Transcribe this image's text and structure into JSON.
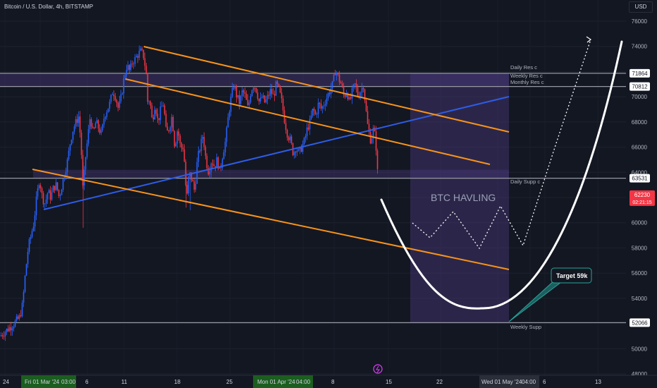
{
  "header": {
    "symbol": "Bitcoin / U.S. Dollar, 4h, BITSTAMP",
    "currency": "USD"
  },
  "colors": {
    "background": "#131722",
    "up_candle": "#2962ff",
    "down_candle": "#f23645",
    "channel": "#f7931a",
    "trendline": "#2e5ce6",
    "zone": "#4a3a7a",
    "level_line": "#9598a1",
    "projection": "#ffffff"
  },
  "chart_data": {
    "type": "candlestick",
    "y_ticks": [
      48000,
      50000,
      52000,
      54000,
      56000,
      58000,
      60000,
      62000,
      64000,
      66000,
      68000,
      70000,
      72000,
      74000,
      76000
    ],
    "y_tick_labels": [
      "48000",
      "50000",
      "52000",
      "54000",
      "56000",
      "58000",
      "60000",
      "62000",
      "64000",
      "66000",
      "68000",
      "70000",
      "72000",
      "74000",
      "76000"
    ],
    "x_tick_labels": [
      "24",
      "Fri 01 Mar '24",
      "03:00",
      "6",
      "11",
      "18",
      "25",
      "Mon 01 Apr '24",
      "04:00",
      "8",
      "15",
      "22",
      "Wed 01 May '24",
      "04:00",
      "6",
      "13"
    ],
    "price_path": [
      [
        0,
        51000
      ],
      [
        10,
        51500
      ],
      [
        20,
        52000
      ],
      [
        28,
        52500
      ],
      [
        32,
        53500
      ],
      [
        36,
        56000
      ],
      [
        40,
        58000
      ],
      [
        44,
        59000
      ],
      [
        48,
        60000
      ],
      [
        52,
        62000
      ],
      [
        56,
        63500
      ],
      [
        60,
        62000
      ],
      [
        64,
        61500
      ],
      [
        68,
        62500
      ],
      [
        72,
        62000
      ],
      [
        76,
        62800
      ],
      [
        80,
        63000
      ],
      [
        84,
        62000
      ],
      [
        88,
        63000
      ],
      [
        92,
        64000
      ],
      [
        96,
        65000
      ],
      [
        100,
        66500
      ],
      [
        104,
        67500
      ],
      [
        108,
        68000
      ],
      [
        112,
        68500
      ],
      [
        116,
        65000
      ],
      [
        118,
        62000
      ],
      [
        120,
        64500
      ],
      [
        124,
        66500
      ],
      [
        128,
        68500
      ],
      [
        132,
        67000
      ],
      [
        136,
        68000
      ],
      [
        140,
        67500
      ],
      [
        144,
        67000
      ],
      [
        148,
        68500
      ],
      [
        152,
        69000
      ],
      [
        156,
        69500
      ],
      [
        160,
        70500
      ],
      [
        164,
        70000
      ],
      [
        168,
        69000
      ],
      [
        172,
        70000
      ],
      [
        176,
        71500
      ],
      [
        180,
        72500
      ],
      [
        184,
        72000
      ],
      [
        188,
        72800
      ],
      [
        192,
        73000
      ],
      [
        196,
        73400
      ],
      [
        200,
        73600
      ],
      [
        204,
        73200
      ],
      [
        208,
        71500
      ],
      [
        210,
        69000
      ],
      [
        212,
        70000
      ],
      [
        214,
        69000
      ],
      [
        216,
        68000
      ],
      [
        220,
        69500
      ],
      [
        224,
        68000
      ],
      [
        228,
        69000
      ],
      [
        232,
        69500
      ],
      [
        236,
        67000
      ],
      [
        240,
        67500
      ],
      [
        244,
        68500
      ],
      [
        248,
        66000
      ],
      [
        252,
        67500
      ],
      [
        256,
        66000
      ],
      [
        260,
        66000
      ],
      [
        262,
        64500
      ],
      [
        264,
        62500
      ],
      [
        266,
        62000
      ],
      [
        268,
        64000
      ],
      [
        272,
        63500
      ],
      [
        276,
        62500
      ],
      [
        280,
        65000
      ],
      [
        284,
        66000
      ],
      [
        288,
        67000
      ],
      [
        292,
        65000
      ],
      [
        296,
        64000
      ],
      [
        300,
        65000
      ],
      [
        304,
        64500
      ],
      [
        308,
        65000
      ],
      [
        312,
        64000
      ],
      [
        316,
        65500
      ],
      [
        320,
        66500
      ],
      [
        324,
        68500
      ],
      [
        328,
        70000
      ],
      [
        332,
        71000
      ],
      [
        336,
        70000
      ],
      [
        340,
        69500
      ],
      [
        344,
        70500
      ],
      [
        348,
        70000
      ],
      [
        352,
        69000
      ],
      [
        356,
        70500
      ],
      [
        360,
        71000
      ],
      [
        364,
        70500
      ],
      [
        368,
        69500
      ],
      [
        372,
        70000
      ],
      [
        376,
        69500
      ],
      [
        380,
        70000
      ],
      [
        384,
        70500
      ],
      [
        388,
        70000
      ],
      [
        392,
        71000
      ],
      [
        396,
        70500
      ],
      [
        400,
        69500
      ],
      [
        404,
        68000
      ],
      [
        408,
        67000
      ],
      [
        412,
        66500
      ],
      [
        416,
        65500
      ],
      [
        420,
        66000
      ],
      [
        424,
        65500
      ],
      [
        428,
        66000
      ],
      [
        432,
        66500
      ],
      [
        436,
        67500
      ],
      [
        440,
        68000
      ],
      [
        444,
        69000
      ],
      [
        448,
        68500
      ],
      [
        452,
        69500
      ],
      [
        456,
        69000
      ],
      [
        460,
        69500
      ],
      [
        464,
        70000
      ],
      [
        468,
        70500
      ],
      [
        472,
        71000
      ],
      [
        476,
        72200
      ],
      [
        480,
        71500
      ],
      [
        484,
        71000
      ],
      [
        488,
        70000
      ],
      [
        492,
        70500
      ],
      [
        496,
        69500
      ],
      [
        500,
        70500
      ],
      [
        504,
        71000
      ],
      [
        508,
        70000
      ],
      [
        512,
        70500
      ],
      [
        516,
        71000
      ],
      [
        518,
        69500
      ],
      [
        522,
        67500
      ],
      [
        526,
        66500
      ],
      [
        530,
        67500
      ],
      [
        533,
        66500
      ],
      [
        535,
        64500
      ],
      [
        537,
        62600
      ]
    ],
    "annotations": {
      "zone_label": "BTC HAVLING",
      "target_label": "Target 59k",
      "levels": [
        {
          "name": "Daily Res c",
          "price": 71864,
          "label": "71864"
        },
        {
          "name": "Weekly Res c",
          "price": 71500,
          "label": ""
        },
        {
          "name": "Monthly Res c",
          "price": 70812,
          "label": "70812"
        },
        {
          "name": "Daily Supp c",
          "price": 63531,
          "label": "63531"
        },
        {
          "name": "Weekly Supp",
          "price": 52066,
          "label": "52066"
        }
      ],
      "current_price": {
        "value": 62230,
        "label": "62230",
        "countdown": "02:21:15"
      }
    }
  }
}
